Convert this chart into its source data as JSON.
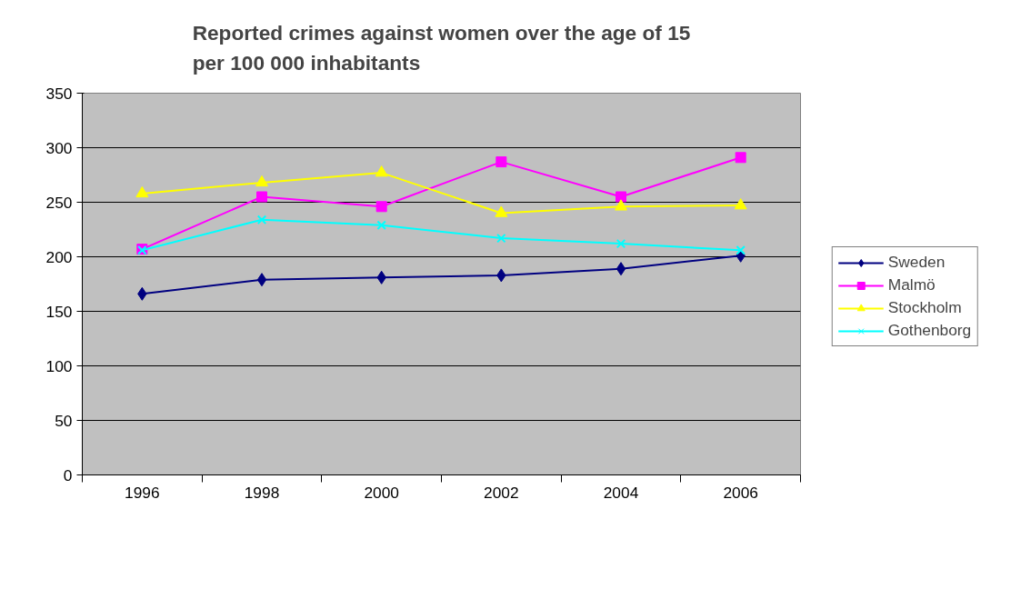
{
  "chart_data": {
    "type": "line",
    "title": "Reported crimes against women over the age of 15 per 100 000 inhabitants",
    "categories": [
      "1996",
      "1998",
      "2000",
      "2002",
      "2004",
      "2006"
    ],
    "series": [
      {
        "name": "Sweden",
        "color": "#000080",
        "marker": "diamond",
        "values": [
          166,
          179,
          181,
          183,
          189,
          201
        ]
      },
      {
        "name": "Malmö",
        "color": "#ff00ff",
        "marker": "square",
        "values": [
          207,
          255,
          246,
          287,
          255,
          291
        ]
      },
      {
        "name": "Stockholm",
        "color": "#ffff00",
        "marker": "triangle",
        "values": [
          258,
          268,
          277,
          240,
          246,
          247
        ]
      },
      {
        "name": "Gothenborg",
        "color": "#00ffff",
        "marker": "cross",
        "values": [
          206,
          234,
          229,
          217,
          212,
          206
        ]
      }
    ],
    "ylim": [
      0,
      350
    ],
    "yticks": [
      0,
      50,
      100,
      150,
      200,
      250,
      300,
      350
    ],
    "grid": "y",
    "legend": "right"
  }
}
